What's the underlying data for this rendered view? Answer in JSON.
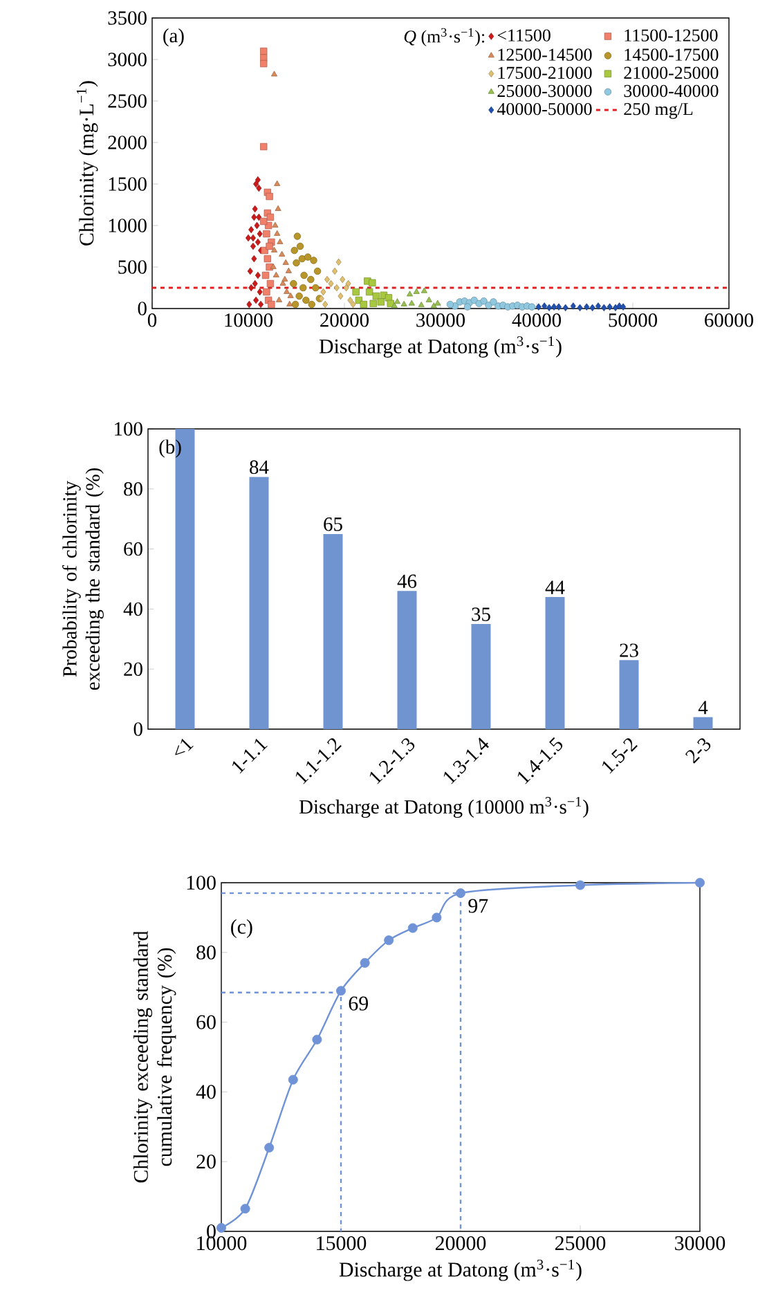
{
  "chart_data": [
    {
      "type": "scatter",
      "xlabel": "Discharge at Datong (m$^{3}$·s$^{−1}$)",
      "ylabel": "Chlorinity (mg·L$^{−1}$)",
      "legend_title": "*Q* (m$^{3}$·s$^{−1}$):",
      "legend": "top right",
      "annotations": [
        "(a)"
      ],
      "xlim": [
        0,
        60000
      ],
      "xticks": [
        0,
        10000,
        20000,
        30000,
        40000,
        50000,
        60000
      ],
      "ylim": [
        0,
        3500
      ],
      "yticks": [
        0,
        500,
        1000,
        1500,
        2000,
        2500,
        3000,
        3500
      ],
      "ref_lines": [
        {
          "axis": "y",
          "value": 250,
          "label": "250 mg/L",
          "color": "#e02020",
          "line_style": "dashed"
        }
      ],
      "series": [
        {
          "name": "<11500",
          "color": "#cc1a1a",
          "marker": "diamond",
          "x": [
            10100,
            10200,
            10300,
            10000,
            10300,
            10500,
            10600,
            10700,
            10800,
            11000,
            11100,
            10900,
            11000,
            11200,
            11300,
            10600,
            10700,
            10800,
            11000,
            11200,
            11300,
            10500,
            11100
          ],
          "values": [
            50,
            450,
            250,
            850,
            950,
            850,
            1100,
            1200,
            1500,
            1550,
            1450,
            1000,
            800,
            900,
            700,
            600,
            300,
            100,
            400,
            200,
            50,
            750,
            1100
          ]
        },
        {
          "name": "11500-12500",
          "color": "#f0806a",
          "marker": "square",
          "x": [
            11600,
            11600,
            11600,
            11600,
            12000,
            12200,
            12000,
            12300,
            12100,
            11900,
            12400,
            11700,
            12000,
            12200,
            11800,
            12300,
            11900,
            12100,
            12400,
            11600,
            12200
          ],
          "values": [
            3100,
            3020,
            2950,
            1950,
            1400,
            1350,
            1150,
            1100,
            1000,
            900,
            800,
            700,
            600,
            500,
            400,
            300,
            200,
            100,
            50,
            1050,
            750
          ]
        },
        {
          "name": "12500-14500",
          "color": "#d88a5a",
          "marker": "triangle",
          "x": [
            12700,
            13000,
            13100,
            12800,
            13000,
            13300,
            12700,
            13500,
            13900,
            14200,
            12900,
            13600,
            14000,
            13200,
            14300,
            13800,
            12600,
            14400
          ],
          "values": [
            2820,
            1500,
            1200,
            1000,
            900,
            800,
            700,
            650,
            550,
            450,
            400,
            300,
            200,
            100,
            50,
            350,
            500,
            150
          ]
        },
        {
          "name": "14500-17500",
          "color": "#b8962a",
          "marker": "circle",
          "x": [
            15100,
            14800,
            15400,
            15000,
            15600,
            16200,
            16800,
            17200,
            15800,
            14700,
            16500,
            17000,
            15300,
            16000,
            16600,
            17400,
            14900,
            15700
          ],
          "values": [
            870,
            700,
            750,
            550,
            600,
            620,
            580,
            450,
            400,
            300,
            350,
            250,
            150,
            100,
            50,
            120,
            50,
            250
          ]
        },
        {
          "name": "17500-21000",
          "color": "#e0c070",
          "marker": "diamond",
          "x": [
            19400,
            19000,
            19800,
            18600,
            20200,
            17800,
            18200,
            19600,
            20600,
            18000,
            20900,
            19200,
            17600,
            20400
          ],
          "values": [
            560,
            450,
            350,
            300,
            250,
            200,
            350,
            150,
            100,
            50,
            50,
            250,
            120,
            300
          ]
        },
        {
          "name": "21000-25000",
          "color": "#a8c840",
          "marker": "square",
          "x": [
            22400,
            22900,
            22600,
            23300,
            24100,
            24600,
            21500,
            22000,
            23800,
            24800,
            21200,
            23000
          ],
          "values": [
            330,
            310,
            200,
            150,
            160,
            130,
            100,
            50,
            80,
            60,
            200,
            60
          ]
        },
        {
          "name": "25000-30000",
          "color": "#98c050",
          "marker": "triangle",
          "x": [
            26800,
            27500,
            28300,
            28800,
            25500,
            26200,
            27000,
            29300,
            29700,
            28000,
            25200
          ],
          "values": [
            170,
            200,
            210,
            100,
            80,
            50,
            60,
            30,
            60,
            40,
            30
          ]
        },
        {
          "name": "30000-40000",
          "color": "#90c8e0",
          "marker": "circle",
          "x": [
            31500,
            32000,
            32500,
            33000,
            33500,
            34000,
            34500,
            35000,
            35500,
            36000,
            36500,
            37000,
            37500,
            38000,
            38500,
            39000,
            39500,
            31000,
            32800
          ],
          "values": [
            30,
            80,
            90,
            70,
            100,
            60,
            90,
            40,
            80,
            30,
            40,
            20,
            30,
            40,
            20,
            30,
            20,
            50,
            20
          ]
        },
        {
          "name": "40000-50000",
          "color": "#2050b0",
          "marker": "diamond",
          "x": [
            40200,
            40800,
            41300,
            41800,
            42300,
            43000,
            43800,
            44500,
            45200,
            45800,
            46400,
            47000,
            47600,
            48200,
            48600,
            49000
          ],
          "values": [
            20,
            30,
            10,
            20,
            20,
            10,
            30,
            10,
            20,
            10,
            30,
            10,
            20,
            10,
            30,
            20
          ]
        }
      ]
    },
    {
      "type": "bar",
      "xlabel": "Discharge at Datong (10000 m$^{3}$·s$^{−1}$)",
      "ylabel": "Probability of chlorinity exceeding the standard (%)",
      "annotations": [
        "(b)"
      ],
      "categories": [
        "<1",
        "1-1.1",
        "1.1-1.2",
        "1.2-1.3",
        "1.3-1.4",
        "1.4-1.5",
        "1.5-2",
        "2-3"
      ],
      "values": [
        100,
        84,
        65,
        46,
        35,
        44,
        23,
        4
      ],
      "value_labels": [
        null,
        "84",
        "65",
        "46",
        "35",
        "44",
        "23",
        "4"
      ],
      "color": "#7094d0",
      "ylim": [
        0,
        100
      ],
      "yticks": [
        0,
        20,
        40,
        60,
        80,
        100
      ]
    },
    {
      "type": "line",
      "xlabel": "Discharge at Datong (m$^{3}$·s$^{−1}$)",
      "ylabel": "Chlorinity exceeding standard cumulative frequency (%)",
      "annotations": [
        "(c)",
        {
          "text": "69",
          "x": 15000,
          "y": 69
        },
        {
          "text": "97",
          "x": 20000,
          "y": 97
        }
      ],
      "xlim": [
        10000,
        30000
      ],
      "xticks": [
        10000,
        15000,
        20000,
        25000,
        30000
      ],
      "ylim": [
        0,
        100
      ],
      "yticks": [
        0,
        20,
        40,
        60,
        80,
        100
      ],
      "series": [
        {
          "color": "#6f93d6",
          "line_style": "dashed",
          "x": [
            10000,
            15000,
            15000
          ],
          "values": [
            68.5,
            68.5,
            0
          ]
        },
        {
          "color": "#6f93d6",
          "line_style": "dashed",
          "x": [
            10000,
            20000,
            20000
          ],
          "values": [
            97,
            97,
            0
          ]
        },
        {
          "color": "#6f93d6",
          "marker": "circle",
          "x": [
            10000,
            11000,
            12000,
            13000,
            14000,
            15000,
            16000,
            17000,
            18000,
            19000,
            20000,
            25000,
            30000
          ],
          "values": [
            1,
            6.5,
            24,
            43.5,
            55,
            69,
            77,
            83.5,
            87,
            90,
            97,
            99.3,
            100
          ]
        }
      ]
    }
  ]
}
